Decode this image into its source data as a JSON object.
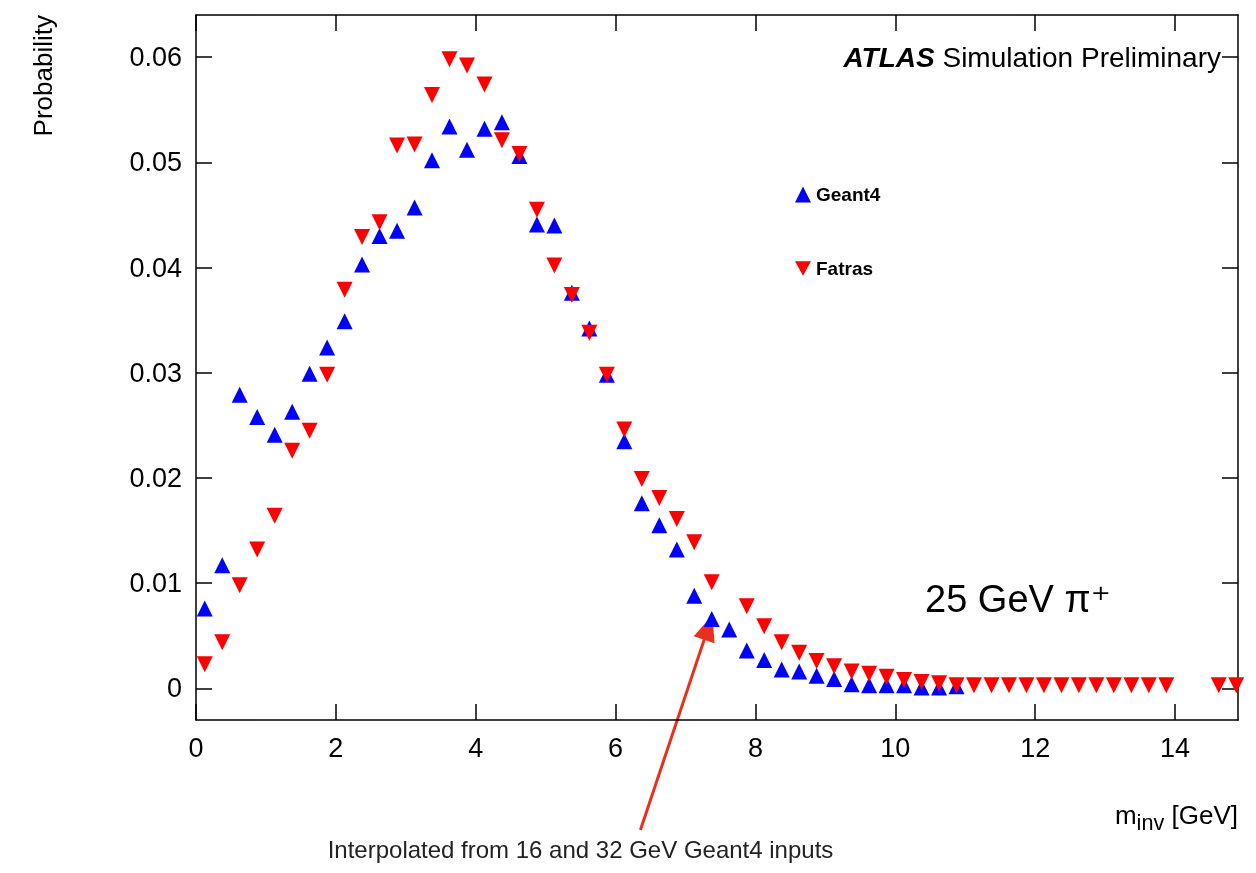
{
  "chart_data": {
    "type": "scatter",
    "title": "ATLAS Simulation Preliminary",
    "xlabel": "m$_{inv}$ [GeV]",
    "ylabel": "Probability",
    "annotations": [
      "25 GeV π⁺",
      "Interpolated from 16 and 32 GeV Geant4 inputs"
    ],
    "x": [
      0.125,
      0.375,
      0.625,
      0.875,
      1.125,
      1.375,
      1.625,
      1.875,
      2.125,
      2.375,
      2.625,
      2.875,
      3.125,
      3.375,
      3.625,
      3.875,
      4.125,
      4.375,
      4.625,
      4.875,
      5.125,
      5.375,
      5.625,
      5.875,
      6.125,
      6.375,
      6.625,
      6.875,
      7.125,
      7.375,
      7.625,
      7.875,
      8.125,
      8.375,
      8.625,
      8.875,
      9.125,
      9.375,
      9.625,
      9.875,
      10.125,
      10.375,
      10.625,
      10.875,
      11.125,
      11.375,
      11.625,
      11.875,
      12.125,
      12.375,
      12.625,
      12.875,
      13.125,
      13.375,
      13.625,
      13.875,
      14.125,
      14.375,
      14.625,
      14.875
    ],
    "series": [
      {
        "name": "Geant4",
        "color": "#0000ff",
        "marker": "triangle",
        "values": [
          0.0076,
          0.0117,
          0.0279,
          0.0258,
          0.0241,
          0.0263,
          0.0299,
          0.0324,
          0.0349,
          0.0403,
          0.043,
          0.0435,
          0.0457,
          0.0502,
          0.0534,
          0.0512,
          0.0532,
          0.0538,
          0.0506,
          0.0441,
          0.044,
          0.0376,
          0.0342,
          0.0298,
          0.0235,
          0.0176,
          0.0155,
          0.0132,
          0.0088,
          0.0066,
          0.0056,
          0.0036,
          0.0027,
          0.0018,
          0.0016,
          0.0012,
          0.0009,
          0.0004,
          0.0003,
          0.0003,
          0.0003,
          0.0001,
          0.0001,
          0.0002,
          null,
          null,
          null,
          null,
          null,
          null,
          null,
          null,
          null,
          null,
          null,
          null,
          null,
          null,
          null,
          null
        ]
      },
      {
        "name": "Fatras",
        "color": "#ff0000",
        "marker": "triangle-down",
        "values": [
          0.0023,
          0.0044,
          0.0098,
          0.0132,
          0.0164,
          0.0226,
          0.0245,
          0.0298,
          0.0379,
          0.0429,
          0.0443,
          0.0516,
          0.0517,
          0.0564,
          0.0598,
          0.0592,
          0.0574,
          0.0521,
          0.0508,
          0.0455,
          0.0402,
          0.0374,
          0.0338,
          0.0298,
          0.0246,
          0.0199,
          0.0181,
          0.0161,
          0.0139,
          0.0101,
          null,
          0.0078,
          0.0059,
          0.0044,
          0.0034,
          0.0026,
          0.0021,
          0.0016,
          0.0014,
          0.0011,
          0.0008,
          0.0006,
          0.0005,
          0.0003,
          0.0003,
          0.0003,
          0.0003,
          0.0003,
          0.0003,
          0.0003,
          0.0003,
          0.0003,
          0.0003,
          0.0003,
          0.0003,
          0.0003,
          null,
          null,
          0.0003,
          0.0003
        ]
      }
    ],
    "xlim": [
      0,
      14.9
    ],
    "xticks": [
      0,
      2,
      4,
      6,
      8,
      10,
      12,
      14
    ],
    "ylim": [
      -0.003,
      0.064
    ],
    "yticks": [
      0,
      0.01,
      0.02,
      0.03,
      0.04,
      0.05,
      0.06
    ],
    "grid": false,
    "legend": "top right"
  }
}
